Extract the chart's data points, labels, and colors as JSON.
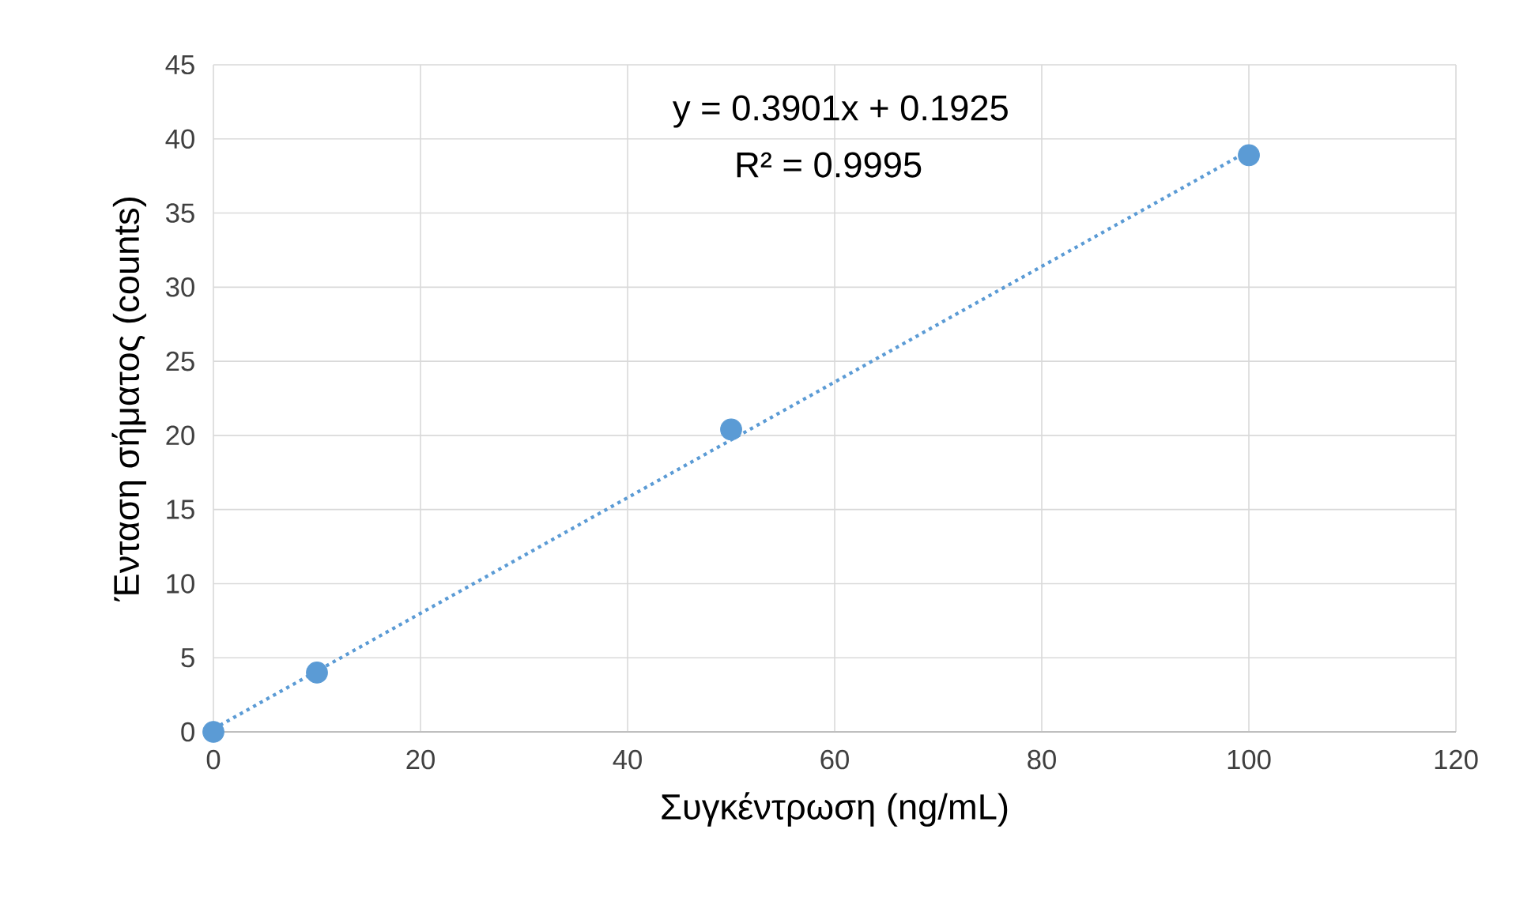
{
  "chart_data": {
    "type": "scatter",
    "xlabel": "Συγκέντρωση (ng/mL)",
    "ylabel": "Ένταση σήματος (counts)",
    "annotations": [
      "y = 0.3901x + 0.1925",
      "R² = 0.9995"
    ],
    "series": [
      {
        "color": "#5b9bd5",
        "x": [
          0,
          10,
          50,
          100
        ],
        "values": [
          0,
          4.0,
          20.4,
          38.9
        ]
      },
      {
        "type": "line",
        "color": "#5b9bd5",
        "x": [
          0,
          100
        ],
        "values": [
          0.2,
          39.2
        ],
        "line_style": "dotted"
      }
    ],
    "xlim": [
      0,
      120
    ],
    "xticks": [
      0,
      20,
      40,
      60,
      80,
      100,
      120
    ],
    "ylim": [
      0,
      45
    ],
    "yticks": [
      0,
      5,
      10,
      15,
      20,
      25,
      30,
      35,
      40,
      45
    ],
    "grid": true
  }
}
